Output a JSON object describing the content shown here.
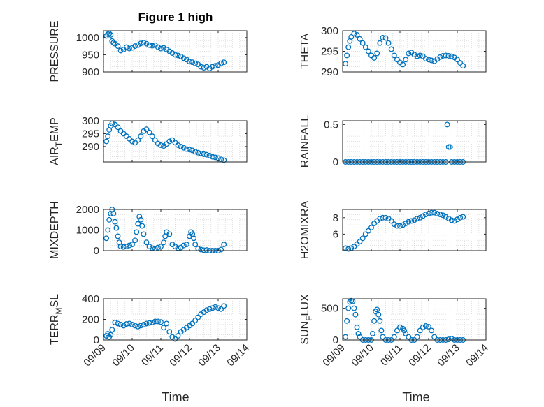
{
  "figure": {
    "title": "Figure 1 high",
    "xlabel": "Time",
    "x_ticks": [
      "09/09",
      "09/10",
      "09/11",
      "09/12",
      "09/13",
      "09/14"
    ],
    "marker_color": "#0072BD",
    "axes_bg": "#FFFFFF",
    "grid_color": "#D9D9D9"
  },
  "chart_data": [
    {
      "type": "scatter",
      "ylabel": "PRESSURE",
      "ylim": [
        900,
        1020
      ],
      "yticks": [
        900,
        950,
        1000
      ],
      "x_range_days": [
        0,
        5
      ],
      "grid": true,
      "x": [
        0.1,
        0.15,
        0.2,
        0.25,
        0.3,
        0.35,
        0.4,
        0.5,
        0.6,
        0.7,
        0.8,
        0.9,
        1.0,
        1.1,
        1.2,
        1.3,
        1.4,
        1.5,
        1.6,
        1.7,
        1.8,
        1.9,
        2.0,
        2.1,
        2.2,
        2.3,
        2.4,
        2.5,
        2.6,
        2.7,
        2.8,
        2.9,
        3.0,
        3.1,
        3.2,
        3.3,
        3.4,
        3.5,
        3.6,
        3.7,
        3.8,
        3.9,
        4.0,
        4.1,
        4.2
      ],
      "y": [
        1005,
        1010,
        1012,
        1008,
        990,
        985,
        982,
        975,
        962,
        965,
        972,
        968,
        970,
        975,
        978,
        983,
        985,
        982,
        978,
        976,
        978,
        972,
        968,
        970,
        965,
        960,
        955,
        950,
        948,
        945,
        940,
        936,
        930,
        928,
        925,
        922,
        915,
        912,
        915,
        910,
        915,
        918,
        920,
        925,
        928
      ]
    },
    {
      "type": "scatter",
      "ylabel": "THETA",
      "ylim": [
        290,
        300
      ],
      "yticks": [
        290,
        295,
        300
      ],
      "x_range_days": [
        0,
        5
      ],
      "grid": true,
      "x": [
        0.1,
        0.15,
        0.2,
        0.25,
        0.3,
        0.4,
        0.5,
        0.6,
        0.7,
        0.8,
        0.9,
        1.0,
        1.1,
        1.2,
        1.3,
        1.4,
        1.5,
        1.6,
        1.7,
        1.8,
        1.9,
        2.0,
        2.1,
        2.2,
        2.3,
        2.4,
        2.5,
        2.6,
        2.7,
        2.8,
        2.9,
        3.0,
        3.1,
        3.2,
        3.3,
        3.4,
        3.5,
        3.6,
        3.7,
        3.8,
        3.9,
        4.0,
        4.1,
        4.2
      ],
      "y": [
        292,
        294,
        296,
        297.5,
        298.5,
        299.3,
        299,
        298,
        297,
        296,
        295,
        294,
        293.4,
        294.5,
        297,
        298.3,
        298.2,
        297,
        295.5,
        294,
        293,
        292.3,
        291.8,
        293,
        294.5,
        294.7,
        294.2,
        293.8,
        294,
        293.8,
        293.2,
        293,
        292.8,
        292.6,
        293.1,
        293.6,
        293.9,
        294,
        293.9,
        293.8,
        293.5,
        293,
        292.2,
        291.5
      ]
    },
    {
      "type": "scatter",
      "ylabel": "AIR_TEMP",
      "ylim": [
        284,
        300
      ],
      "yticks": [
        290,
        295,
        300
      ],
      "x_range_days": [
        0,
        5
      ],
      "grid": true,
      "x": [
        0.1,
        0.15,
        0.2,
        0.25,
        0.3,
        0.4,
        0.5,
        0.6,
        0.7,
        0.8,
        0.9,
        1.0,
        1.1,
        1.2,
        1.3,
        1.4,
        1.5,
        1.6,
        1.7,
        1.8,
        1.9,
        2.0,
        2.1,
        2.2,
        2.3,
        2.4,
        2.5,
        2.6,
        2.7,
        2.8,
        2.9,
        3.0,
        3.1,
        3.2,
        3.3,
        3.4,
        3.5,
        3.6,
        3.7,
        3.8,
        3.9,
        4.0,
        4.1,
        4.2
      ],
      "y": [
        292,
        294,
        296.5,
        298,
        299,
        298.5,
        297.5,
        296,
        295,
        294,
        293,
        292,
        291.5,
        292.5,
        294,
        296,
        296.7,
        295.5,
        294,
        292.5,
        291.2,
        290.5,
        290.2,
        291,
        292,
        292.5,
        291.5,
        290.5,
        290,
        289.5,
        289,
        288.8,
        288.5,
        288,
        287.6,
        287.3,
        287,
        286.8,
        286.5,
        286,
        285.8,
        285.5,
        285,
        284.7
      ]
    },
    {
      "type": "scatter",
      "ylabel": "RAINFALL",
      "ylim": [
        0,
        0.55
      ],
      "yticks": [
        0,
        0.5
      ],
      "x_range_days": [
        0,
        5
      ],
      "grid": true,
      "x": [
        0.1,
        0.2,
        0.3,
        0.4,
        0.5,
        0.6,
        0.7,
        0.8,
        0.9,
        1.0,
        1.1,
        1.2,
        1.3,
        1.4,
        1.5,
        1.6,
        1.7,
        1.8,
        1.9,
        2.0,
        2.1,
        2.2,
        2.3,
        2.4,
        2.5,
        2.6,
        2.7,
        2.8,
        2.9,
        3.0,
        3.1,
        3.2,
        3.3,
        3.4,
        3.5,
        3.6,
        3.65,
        3.7,
        3.75,
        3.8,
        3.9,
        4.0,
        4.1,
        4.2
      ],
      "y": [
        0,
        0,
        0,
        0,
        0,
        0,
        0,
        0,
        0,
        0,
        0,
        0,
        0,
        0,
        0,
        0,
        0,
        0,
        0,
        0,
        0,
        0,
        0,
        0,
        0,
        0,
        0,
        0,
        0,
        0,
        0,
        0,
        0,
        0,
        0,
        0,
        0.5,
        0.2,
        0.2,
        0,
        0,
        0,
        0,
        0
      ]
    },
    {
      "type": "scatter",
      "ylabel": "MIXDEPTH",
      "ylim": [
        0,
        2000
      ],
      "yticks": [
        0,
        1000,
        2000
      ],
      "x_range_days": [
        0,
        5
      ],
      "grid": true,
      "x": [
        0.1,
        0.15,
        0.2,
        0.25,
        0.3,
        0.35,
        0.4,
        0.45,
        0.5,
        0.55,
        0.6,
        0.7,
        0.8,
        0.9,
        1.0,
        1.1,
        1.15,
        1.2,
        1.25,
        1.3,
        1.35,
        1.4,
        1.5,
        1.6,
        1.7,
        1.8,
        1.9,
        2.0,
        2.1,
        2.15,
        2.2,
        2.3,
        2.4,
        2.5,
        2.6,
        2.7,
        2.8,
        2.9,
        3.0,
        3.05,
        3.1,
        3.15,
        3.2,
        3.3,
        3.4,
        3.5,
        3.6,
        3.7,
        3.8,
        3.9,
        4.0,
        4.1,
        4.2
      ],
      "y": [
        600,
        1000,
        1500,
        1800,
        2000,
        1800,
        1400,
        1100,
        700,
        400,
        200,
        180,
        200,
        250,
        300,
        500,
        900,
        1300,
        1650,
        1500,
        1200,
        800,
        400,
        200,
        120,
        100,
        150,
        200,
        400,
        700,
        900,
        800,
        300,
        200,
        120,
        150,
        250,
        300,
        700,
        900,
        800,
        600,
        300,
        100,
        50,
        20,
        30,
        0,
        0,
        0,
        0,
        50,
        300
      ]
    },
    {
      "type": "scatter",
      "ylabel": "H2OMIXRA",
      "ylim": [
        4,
        9
      ],
      "yticks": [
        6,
        8
      ],
      "x_range_days": [
        0,
        5
      ],
      "grid": true,
      "x": [
        0.1,
        0.2,
        0.3,
        0.4,
        0.5,
        0.6,
        0.7,
        0.8,
        0.9,
        1.0,
        1.1,
        1.2,
        1.3,
        1.4,
        1.5,
        1.6,
        1.7,
        1.8,
        1.9,
        2.0,
        2.1,
        2.2,
        2.3,
        2.4,
        2.5,
        2.6,
        2.7,
        2.8,
        2.9,
        3.0,
        3.1,
        3.2,
        3.3,
        3.4,
        3.5,
        3.6,
        3.7,
        3.8,
        3.9,
        4.0,
        4.1,
        4.2
      ],
      "y": [
        4.3,
        4.2,
        4.3,
        4.5,
        4.8,
        5.1,
        5.5,
        6.0,
        6.4,
        6.8,
        7.3,
        7.6,
        7.9,
        8.0,
        8.0,
        7.9,
        7.6,
        7.2,
        7.0,
        7.0,
        7.1,
        7.3,
        7.5,
        7.6,
        7.7,
        7.9,
        8.0,
        8.2,
        8.4,
        8.5,
        8.6,
        8.6,
        8.5,
        8.4,
        8.3,
        8.1,
        7.9,
        7.7,
        7.6,
        7.8,
        8.0,
        8.1
      ]
    },
    {
      "type": "scatter",
      "ylabel": "TERR_MSL",
      "ylim": [
        0,
        400
      ],
      "yticks": [
        0,
        200,
        400
      ],
      "x_range_days": [
        0,
        5
      ],
      "grid": true,
      "x": [
        0.1,
        0.15,
        0.2,
        0.25,
        0.3,
        0.4,
        0.5,
        0.6,
        0.7,
        0.8,
        0.9,
        1.0,
        1.1,
        1.2,
        1.3,
        1.4,
        1.5,
        1.6,
        1.7,
        1.8,
        1.9,
        2.0,
        2.1,
        2.2,
        2.3,
        2.4,
        2.5,
        2.6,
        2.7,
        2.8,
        2.9,
        3.0,
        3.1,
        3.2,
        3.3,
        3.4,
        3.5,
        3.6,
        3.7,
        3.8,
        3.9,
        4.0,
        4.1,
        4.2
      ],
      "y": [
        40,
        60,
        30,
        50,
        100,
        170,
        160,
        150,
        140,
        155,
        160,
        150,
        140,
        130,
        140,
        150,
        160,
        165,
        170,
        180,
        180,
        175,
        120,
        160,
        80,
        30,
        10,
        40,
        80,
        100,
        120,
        140,
        160,
        190,
        220,
        250,
        270,
        290,
        300,
        310,
        320,
        310,
        300,
        330
      ]
    },
    {
      "type": "scatter",
      "ylabel": "SUN_FLUX",
      "ylim": [
        0,
        650
      ],
      "yticks": [
        0,
        500
      ],
      "x_range_days": [
        0,
        5
      ],
      "grid": true,
      "x": [
        0.1,
        0.15,
        0.2,
        0.25,
        0.3,
        0.35,
        0.4,
        0.45,
        0.5,
        0.55,
        0.6,
        0.7,
        0.8,
        0.9,
        1.0,
        1.05,
        1.1,
        1.15,
        1.2,
        1.25,
        1.3,
        1.35,
        1.4,
        1.5,
        1.6,
        1.7,
        1.8,
        1.9,
        2.0,
        2.1,
        2.15,
        2.2,
        2.3,
        2.4,
        2.5,
        2.6,
        2.7,
        2.8,
        2.9,
        3.0,
        3.1,
        3.2,
        3.3,
        3.4,
        3.5,
        3.6,
        3.7,
        3.8,
        3.9,
        4.0,
        4.1,
        4.2
      ],
      "y": [
        50,
        300,
        500,
        600,
        620,
        610,
        500,
        400,
        200,
        100,
        50,
        0,
        0,
        0,
        0,
        100,
        300,
        450,
        480,
        400,
        300,
        150,
        50,
        0,
        0,
        0,
        50,
        150,
        200,
        180,
        150,
        100,
        50,
        0,
        0,
        50,
        150,
        200,
        220,
        210,
        150,
        50,
        0,
        0,
        0,
        0,
        10,
        20,
        0,
        0,
        0,
        0
      ]
    }
  ]
}
